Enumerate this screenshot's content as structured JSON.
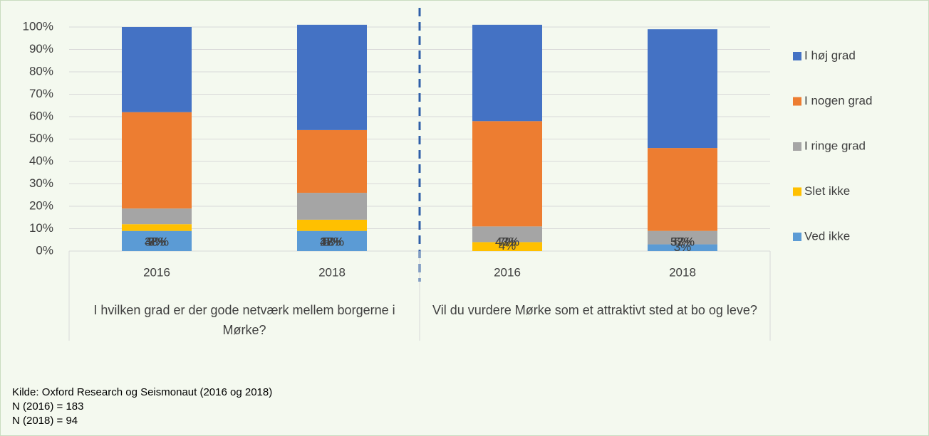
{
  "chart_data": {
    "type": "stacked_bar",
    "categories": [
      "2016",
      "2018",
      "2016",
      "2018"
    ],
    "groups": [
      {
        "label": "I hvilken grad er der gode netværk mellem borgerne i Mørke?",
        "span": 2
      },
      {
        "label": "Vil du vurdere Mørke som et attraktivt sted at bo og leve?",
        "span": 2
      }
    ],
    "series": [
      {
        "name": "Ved ikke",
        "color": "#5b9bd5",
        "values": [
          9,
          9,
          null,
          3
        ],
        "value_labels": [
          "9%",
          "9%",
          null,
          "3%"
        ]
      },
      {
        "name": "Slet ikke",
        "color": "#ffc000",
        "values": [
          3,
          5,
          4,
          null
        ],
        "value_labels": [
          "3%",
          "5%",
          "4%",
          null
        ]
      },
      {
        "name": "I ringe grad",
        "color": "#a5a5a5",
        "values": [
          7,
          12,
          7,
          6
        ],
        "value_labels": [
          "7%",
          "12%",
          "7%",
          "6%"
        ]
      },
      {
        "name": "I nogen grad",
        "color": "#ed7d31",
        "values": [
          43,
          28,
          47,
          37
        ],
        "value_labels": [
          "43%",
          "28%",
          "47%",
          "37%"
        ]
      },
      {
        "name": "I høj grad",
        "color": "#4472c4",
        "values": [
          38,
          47,
          43,
          53
        ],
        "value_labels": [
          "38%",
          "47%",
          "43%",
          "53%"
        ]
      }
    ],
    "ylim": [
      0,
      100
    ],
    "yticks": [
      {
        "value": 0,
        "label": "0%"
      },
      {
        "value": 10,
        "label": "10%"
      },
      {
        "value": 20,
        "label": "20%"
      },
      {
        "value": 30,
        "label": "30%"
      },
      {
        "value": 40,
        "label": "40%"
      },
      {
        "value": 50,
        "label": "50%"
      },
      {
        "value": 60,
        "label": "60%"
      },
      {
        "value": 70,
        "label": "70%"
      },
      {
        "value": 80,
        "label": "80%"
      },
      {
        "value": 90,
        "label": "90%"
      },
      {
        "value": 100,
        "label": "100%"
      }
    ],
    "grid": true,
    "legend": "right",
    "notes": [
      "Kilde: Oxford Research og Seismonaut (2016 og 2018)",
      "N (2016) = 183",
      "N (2018) = 94"
    ]
  }
}
